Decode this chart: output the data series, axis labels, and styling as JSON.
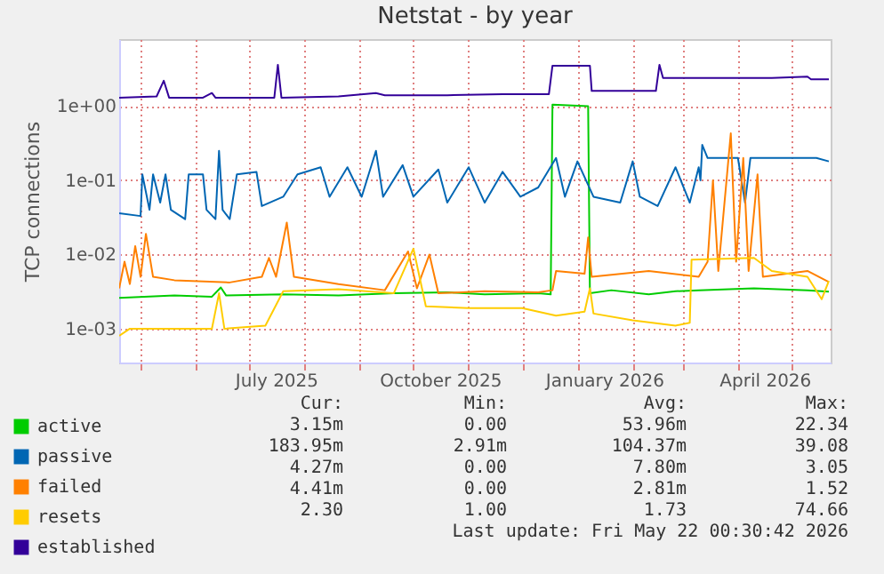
{
  "chart_data": {
    "type": "line",
    "title": "Netstat - by year",
    "ylabel": "TCP connections",
    "log": "y",
    "grid": true,
    "legend": "bottom left",
    "marker": "none",
    "line_style": "solid",
    "xlim": [
      "2025-04-19",
      "2026-05-23"
    ],
    "xticks": [
      {
        "value": "2025-05-01",
        "label": null
      },
      {
        "value": "2025-06-01",
        "label": null
      },
      {
        "value": "2025-07-01",
        "label": null
      },
      {
        "value": "2025-07-16",
        "label": "July 2025"
      },
      {
        "value": "2025-08-01",
        "label": null
      },
      {
        "value": "2025-09-01",
        "label": null
      },
      {
        "value": "2025-10-01",
        "label": null
      },
      {
        "value": "2025-10-16",
        "label": "October 2025"
      },
      {
        "value": "2025-11-01",
        "label": null
      },
      {
        "value": "2025-12-01",
        "label": null
      },
      {
        "value": "2026-01-01",
        "label": null
      },
      {
        "value": "2026-01-16",
        "label": "January 2026"
      },
      {
        "value": "2026-02-01",
        "label": null
      },
      {
        "value": "2026-03-01",
        "label": null
      },
      {
        "value": "2026-04-01",
        "label": null
      },
      {
        "value": "2026-04-16",
        "label": "April 2026"
      },
      {
        "value": "2026-05-01",
        "label": null
      }
    ],
    "ylim": [
      0.00035,
      8
    ],
    "yticks": [
      {
        "value": 0.001,
        "label": "1e-03"
      },
      {
        "value": 0.01,
        "label": "1e-02"
      },
      {
        "value": 0.1,
        "label": "1e-01"
      },
      {
        "value": 1,
        "label": "1e+00"
      }
    ],
    "annotations": [
      "Cur:",
      "Min:",
      "Avg:",
      "Max:",
      "3.15m",
      "0.00",
      "53.96m",
      "22.34",
      "183.95m",
      "2.91m",
      "104.37m",
      "39.08",
      "4.27m",
      "0.00",
      "7.80m",
      "3.05",
      "4.41m",
      "0.00",
      "2.81m",
      "1.52",
      "2.30",
      "1.00",
      "1.73",
      "74.66",
      "Last update: Fri May 22 00:30:42 2026"
    ],
    "series": [
      {
        "name": "active",
        "color": "#00cc00",
        "x": [
          "2025-04-19",
          "2025-05-20",
          "2025-06-10",
          "2025-06-15",
          "2025-06-18",
          "2025-07-20",
          "2025-08-20",
          "2025-09-20",
          "2025-10-20",
          "2025-11-10",
          "2025-12-10",
          "2025-12-17",
          "2025-12-18",
          "2026-01-07",
          "2026-01-08",
          "2026-01-20",
          "2026-02-10",
          "2026-02-25",
          "2026-03-10",
          "2026-04-10",
          "2026-05-10",
          "2026-05-22"
        ],
        "values": [
          0.0026,
          0.0028,
          0.0027,
          0.0036,
          0.0028,
          0.0029,
          0.0028,
          0.003,
          0.0031,
          0.0029,
          0.003,
          0.0029,
          1.05,
          1.0,
          0.003,
          0.0033,
          0.0029,
          0.0032,
          0.0033,
          0.0035,
          0.0033,
          0.00315
        ]
      },
      {
        "name": "passive",
        "color": "#0066b3",
        "x": [
          "2025-04-19",
          "2025-05-01",
          "2025-05-02",
          "2025-05-06",
          "2025-05-08",
          "2025-05-12",
          "2025-05-15",
          "2025-05-18",
          "2025-05-26",
          "2025-05-28",
          "2025-06-05",
          "2025-06-07",
          "2025-06-12",
          "2025-06-14",
          "2025-06-16",
          "2025-06-20",
          "2025-06-24",
          "2025-07-05",
          "2025-07-08",
          "2025-07-20",
          "2025-07-28",
          "2025-08-10",
          "2025-08-15",
          "2025-08-25",
          "2025-09-02",
          "2025-09-10",
          "2025-09-14",
          "2025-09-25",
          "2025-10-01",
          "2025-10-15",
          "2025-10-20",
          "2025-11-01",
          "2025-11-10",
          "2025-11-20",
          "2025-11-30",
          "2025-12-10",
          "2025-12-20",
          "2025-12-25",
          "2026-01-01",
          "2026-01-10",
          "2026-01-25",
          "2026-02-01",
          "2026-02-05",
          "2026-02-15",
          "2026-02-25",
          "2026-03-05",
          "2026-03-10",
          "2026-03-11",
          "2026-03-12",
          "2026-03-15",
          "2026-04-01",
          "2026-04-05",
          "2026-04-08",
          "2026-05-15",
          "2026-05-22"
        ],
        "values": [
          0.036,
          0.033,
          0.12,
          0.04,
          0.12,
          0.05,
          0.12,
          0.04,
          0.03,
          0.12,
          0.12,
          0.04,
          0.03,
          0.25,
          0.04,
          0.03,
          0.12,
          0.13,
          0.045,
          0.06,
          0.12,
          0.15,
          0.06,
          0.15,
          0.06,
          0.25,
          0.06,
          0.16,
          0.06,
          0.14,
          0.05,
          0.15,
          0.05,
          0.13,
          0.06,
          0.08,
          0.2,
          0.06,
          0.18,
          0.06,
          0.05,
          0.18,
          0.06,
          0.045,
          0.15,
          0.05,
          0.15,
          0.1,
          0.3,
          0.2,
          0.2,
          0.05,
          0.2,
          0.2,
          0.18
        ]
      },
      {
        "name": "failed",
        "color": "#ff8000",
        "x": [
          "2025-04-19",
          "2025-04-22",
          "2025-04-25",
          "2025-04-28",
          "2025-05-01",
          "2025-05-04",
          "2025-05-08",
          "2025-05-20",
          "2025-06-20",
          "2025-07-08",
          "2025-07-12",
          "2025-07-16",
          "2025-07-22",
          "2025-07-26",
          "2025-08-20",
          "2025-09-15",
          "2025-09-28",
          "2025-10-03",
          "2025-10-10",
          "2025-10-15",
          "2025-11-10",
          "2025-12-10",
          "2025-12-18",
          "2025-12-20",
          "2026-01-05",
          "2026-01-07",
          "2026-01-09",
          "2026-02-10",
          "2026-03-10",
          "2026-03-15",
          "2026-03-18",
          "2026-03-21",
          "2026-03-28",
          "2026-03-31",
          "2026-04-04",
          "2026-04-07",
          "2026-04-12",
          "2026-04-15",
          "2026-05-10",
          "2026-05-22"
        ],
        "values": [
          0.0035,
          0.008,
          0.004,
          0.013,
          0.005,
          0.019,
          0.005,
          0.0045,
          0.0042,
          0.005,
          0.009,
          0.005,
          0.027,
          0.005,
          0.004,
          0.0033,
          0.011,
          0.0035,
          0.01,
          0.003,
          0.0032,
          0.0031,
          0.0033,
          0.006,
          0.0055,
          0.017,
          0.005,
          0.006,
          0.005,
          0.008,
          0.1,
          0.006,
          0.43,
          0.008,
          0.2,
          0.006,
          0.12,
          0.005,
          0.006,
          0.00427
        ]
      },
      {
        "name": "resets",
        "color": "#ffcc00",
        "x": [
          "2025-04-19",
          "2025-04-25",
          "2025-05-20",
          "2025-06-10",
          "2025-06-14",
          "2025-06-17",
          "2025-07-10",
          "2025-07-20",
          "2025-08-20",
          "2025-09-20",
          "2025-10-01",
          "2025-10-08",
          "2025-11-01",
          "2025-12-01",
          "2025-12-20",
          "2026-01-05",
          "2026-01-08",
          "2026-01-10",
          "2026-02-01",
          "2026-02-25",
          "2026-03-05",
          "2026-03-06",
          "2026-04-10",
          "2026-04-20",
          "2026-05-10",
          "2026-05-18",
          "2026-05-22"
        ],
        "values": [
          0.0008,
          0.001,
          0.001,
          0.001,
          0.003,
          0.001,
          0.0011,
          0.0032,
          0.0034,
          0.003,
          0.012,
          0.002,
          0.0019,
          0.0019,
          0.0015,
          0.0017,
          0.0035,
          0.0016,
          0.0013,
          0.0011,
          0.0012,
          0.0085,
          0.009,
          0.006,
          0.005,
          0.0025,
          0.00441
        ]
      },
      {
        "name": "established",
        "color": "#330099",
        "x": [
          "2025-04-19",
          "2025-05-10",
          "2025-05-14",
          "2025-05-17",
          "2025-06-05",
          "2025-06-10",
          "2025-06-12",
          "2025-07-15",
          "2025-07-17",
          "2025-07-19",
          "2025-08-20",
          "2025-09-10",
          "2025-09-15",
          "2025-10-20",
          "2025-11-20",
          "2025-12-16",
          "2025-12-18",
          "2026-01-08",
          "2026-01-09",
          "2026-02-14",
          "2026-02-16",
          "2026-02-18",
          "2026-03-20",
          "2026-04-20",
          "2026-05-10",
          "2026-05-12",
          "2026-05-22"
        ],
        "values": [
          1.3,
          1.35,
          2.2,
          1.3,
          1.3,
          1.5,
          1.3,
          1.3,
          3.6,
          1.3,
          1.35,
          1.5,
          1.4,
          1.4,
          1.45,
          1.45,
          3.5,
          3.5,
          1.6,
          1.6,
          3.6,
          2.4,
          2.4,
          2.4,
          2.5,
          2.3,
          2.3
        ]
      }
    ]
  }
}
